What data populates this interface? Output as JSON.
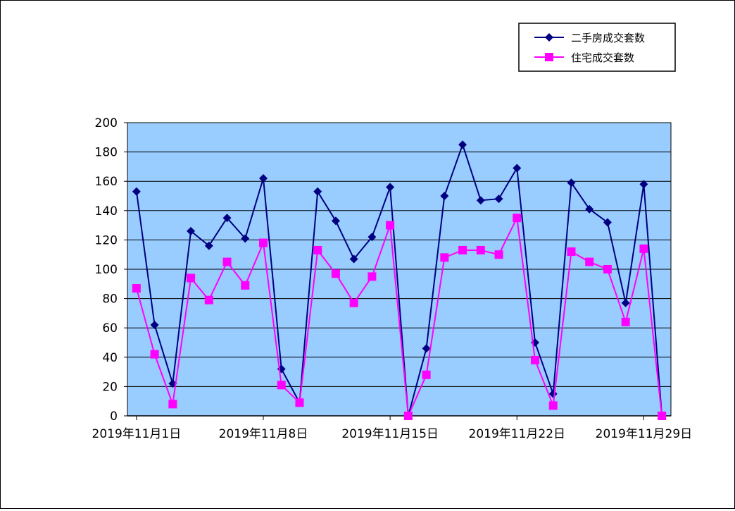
{
  "chart_data": {
    "type": "line",
    "title": "",
    "xlabel": "",
    "ylabel": "",
    "ylim": [
      0,
      200
    ],
    "y_ticks": [
      0,
      20,
      40,
      60,
      80,
      100,
      120,
      140,
      160,
      180,
      200
    ],
    "x_tick_labels": [
      "2019年11月1日",
      "2019年11月8日",
      "2019年11月15日",
      "2019年11月22日",
      "2019年11月29日"
    ],
    "x_tick_indices": [
      0,
      7,
      14,
      21,
      28
    ],
    "plot_background": "#99CCFF",
    "grid": true,
    "legend": "top-right",
    "series": [
      {
        "name": "二手房成交套数",
        "color": "#000080",
        "marker": "diamond",
        "values": [
          153,
          62,
          22,
          126,
          116,
          135,
          121,
          162,
          32,
          9,
          153,
          133,
          107,
          122,
          156,
          0,
          46,
          150,
          185,
          147,
          148,
          169,
          50,
          15,
          159,
          141,
          132,
          77,
          158,
          0
        ]
      },
      {
        "name": "住宅成交套数",
        "color": "#FF00FF",
        "marker": "square",
        "values": [
          87,
          42,
          8,
          94,
          79,
          105,
          89,
          118,
          21,
          9,
          113,
          97,
          77,
          95,
          130,
          0,
          28,
          108,
          113,
          113,
          110,
          135,
          38,
          7,
          112,
          105,
          100,
          64,
          114,
          0
        ]
      }
    ]
  }
}
